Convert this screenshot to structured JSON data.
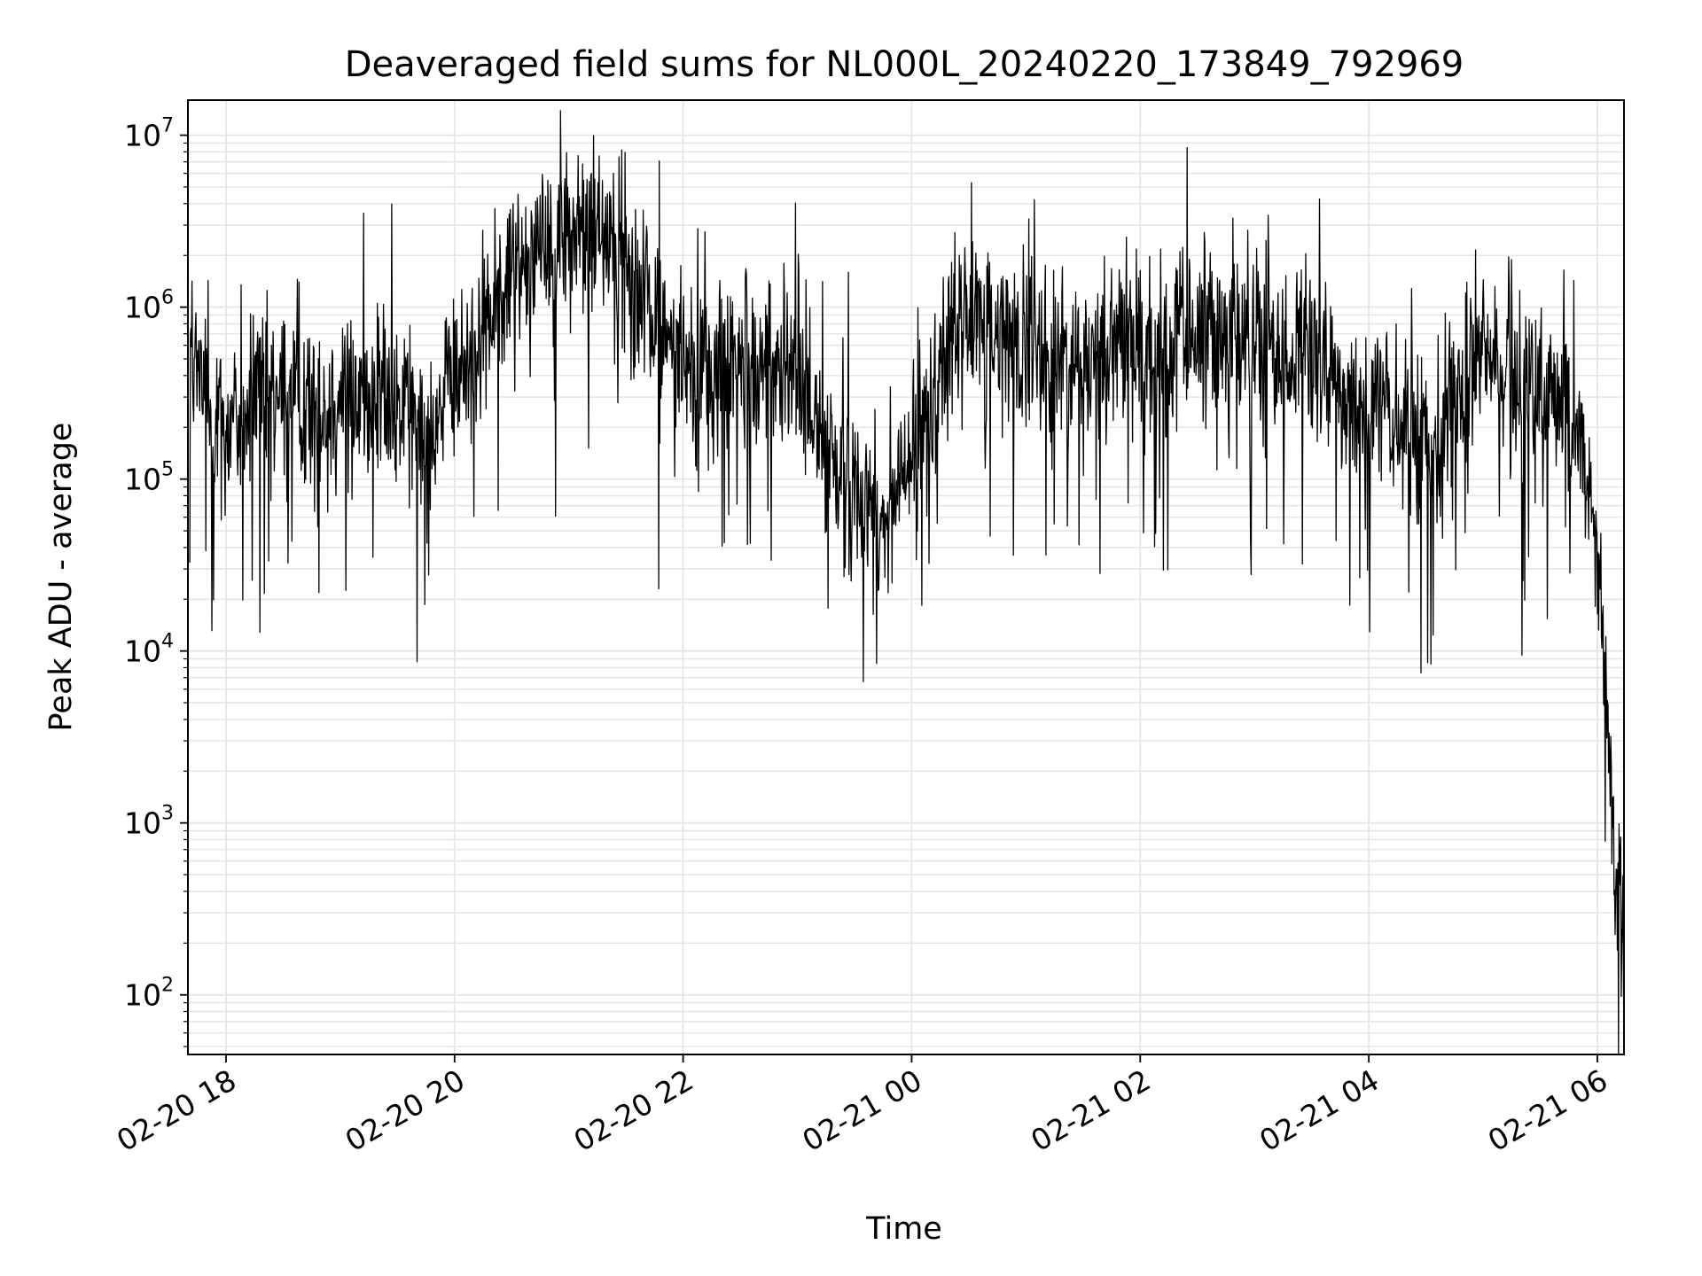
{
  "chart_data": {
    "type": "line",
    "title": "Deaveraged field sums for NL000L_20240220_173849_792969",
    "xlabel": "Time",
    "ylabel": "Peak ADU - average",
    "yscale": "log",
    "ylim": [
      45,
      16000000
    ],
    "xlim": [
      "2024-02-20 17:40",
      "2024-02-21 06:14"
    ],
    "grid": true,
    "line_color": "#000000",
    "x_ticks": [
      {
        "t": "2024-02-20 18:00",
        "label": "02-20 18"
      },
      {
        "t": "2024-02-20 20:00",
        "label": "02-20 20"
      },
      {
        "t": "2024-02-20 22:00",
        "label": "02-20 22"
      },
      {
        "t": "2024-02-21 00:00",
        "label": "02-21 00"
      },
      {
        "t": "2024-02-21 02:00",
        "label": "02-21 02"
      },
      {
        "t": "2024-02-21 04:00",
        "label": "02-21 04"
      },
      {
        "t": "2024-02-21 06:00",
        "label": "02-21 06"
      }
    ],
    "y_ticks": [
      {
        "value": 100,
        "base": "10",
        "exp": "2"
      },
      {
        "value": 1000,
        "base": "10",
        "exp": "3"
      },
      {
        "value": 10000,
        "base": "10",
        "exp": "4"
      },
      {
        "value": 100000,
        "base": "10",
        "exp": "5"
      },
      {
        "value": 1000000,
        "base": "10",
        "exp": "6"
      },
      {
        "value": 10000000,
        "base": "10",
        "exp": "7"
      }
    ],
    "series": [
      {
        "style": "line",
        "x": [
          "2024-02-20 17:41",
          "2024-02-20 17:50",
          "2024-02-20 18:00",
          "2024-02-20 18:15",
          "2024-02-20 18:30",
          "2024-02-20 18:45",
          "2024-02-20 19:00",
          "2024-02-20 19:15",
          "2024-02-20 19:30",
          "2024-02-20 19:45",
          "2024-02-20 20:00",
          "2024-02-20 20:15",
          "2024-02-20 20:30",
          "2024-02-20 20:45",
          "2024-02-20 21:00",
          "2024-02-20 21:15",
          "2024-02-20 21:30",
          "2024-02-20 21:45",
          "2024-02-20 22:00",
          "2024-02-20 22:15",
          "2024-02-20 22:30",
          "2024-02-20 22:45",
          "2024-02-20 23:00",
          "2024-02-20 23:15",
          "2024-02-20 23:30",
          "2024-02-20 23:45",
          "2024-02-21 00:00",
          "2024-02-21 00:15",
          "2024-02-21 00:30",
          "2024-02-21 00:45",
          "2024-02-21 01:00",
          "2024-02-21 01:15",
          "2024-02-21 01:30",
          "2024-02-21 01:45",
          "2024-02-21 02:00",
          "2024-02-21 02:15",
          "2024-02-21 02:30",
          "2024-02-21 02:45",
          "2024-02-21 03:00",
          "2024-02-21 03:15",
          "2024-02-21 03:30",
          "2024-02-21 03:45",
          "2024-02-21 04:00",
          "2024-02-21 04:15",
          "2024-02-21 04:30",
          "2024-02-21 04:45",
          "2024-02-21 05:00",
          "2024-02-21 05:15",
          "2024-02-21 05:30",
          "2024-02-21 05:45",
          "2024-02-21 05:52",
          "2024-02-21 05:58",
          "2024-02-21 06:02",
          "2024-02-21 06:06",
          "2024-02-21 06:09",
          "2024-02-21 06:12",
          "2024-02-21 06:14"
        ],
        "y": [
          600000,
          250000,
          200000,
          280000,
          300000,
          250000,
          300000,
          320000,
          260000,
          200000,
          350000,
          700000,
          1800000,
          2500000,
          2700000,
          3000000,
          1800000,
          900000,
          500000,
          400000,
          450000,
          500000,
          380000,
          150000,
          90000,
          60000,
          120000,
          500000,
          900000,
          700000,
          600000,
          450000,
          500000,
          600000,
          600000,
          500000,
          700000,
          700000,
          550000,
          500000,
          450000,
          350000,
          250000,
          200000,
          150000,
          300000,
          450000,
          400000,
          300000,
          200000,
          180000,
          60000,
          20000,
          3000,
          600,
          250,
          150
        ],
        "noise_decades": 0.45
      }
    ]
  }
}
